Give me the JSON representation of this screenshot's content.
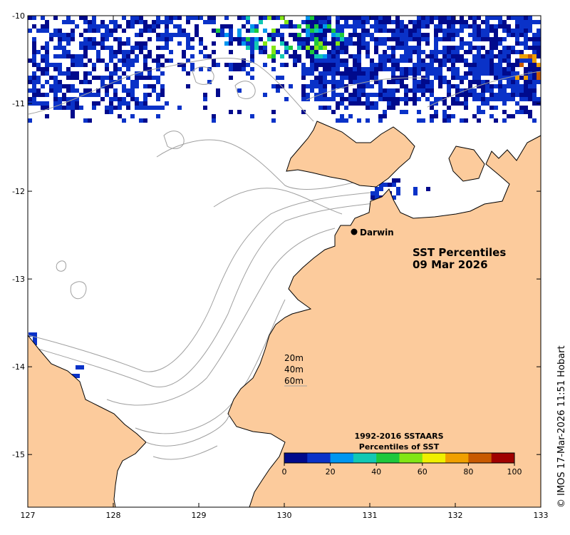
{
  "map": {
    "title_line1": "SST Percentiles",
    "title_line2": "09 Mar 2026",
    "place": {
      "name": "Darwin",
      "lon": 130.84,
      "lat": -12.46
    },
    "extent": {
      "lon_min": 127,
      "lon_max": 133,
      "lat_min": -15.6,
      "lat_max": -10
    },
    "x_ticks": [
      "127",
      "128",
      "129",
      "130",
      "131",
      "132",
      "133"
    ],
    "y_ticks": [
      "-10",
      "-11",
      "-12",
      "-13",
      "-14",
      "-15"
    ],
    "depth_labels": [
      "20m",
      "40m",
      "60m"
    ],
    "credit": "© IMOS 17-Mar-2026 11:51 Hobart",
    "colors": {
      "land": "#fccb9c",
      "sea": "#ffffff",
      "coastline": "#000000",
      "isobath": "#a0a0a0",
      "data_dominant": "#0a2ca0"
    }
  },
  "colorbar": {
    "title_line1": "1992-2016 SSTAARS",
    "title_line2": "Percentiles of SST",
    "tick_labels": [
      "0",
      "20",
      "40",
      "60",
      "80",
      "100"
    ],
    "colors": [
      "#000a8c",
      "#0a32c8",
      "#0096f0",
      "#12c8b4",
      "#1ec83c",
      "#82e614",
      "#f0f000",
      "#f0a000",
      "#c85a00",
      "#a00000"
    ]
  }
}
